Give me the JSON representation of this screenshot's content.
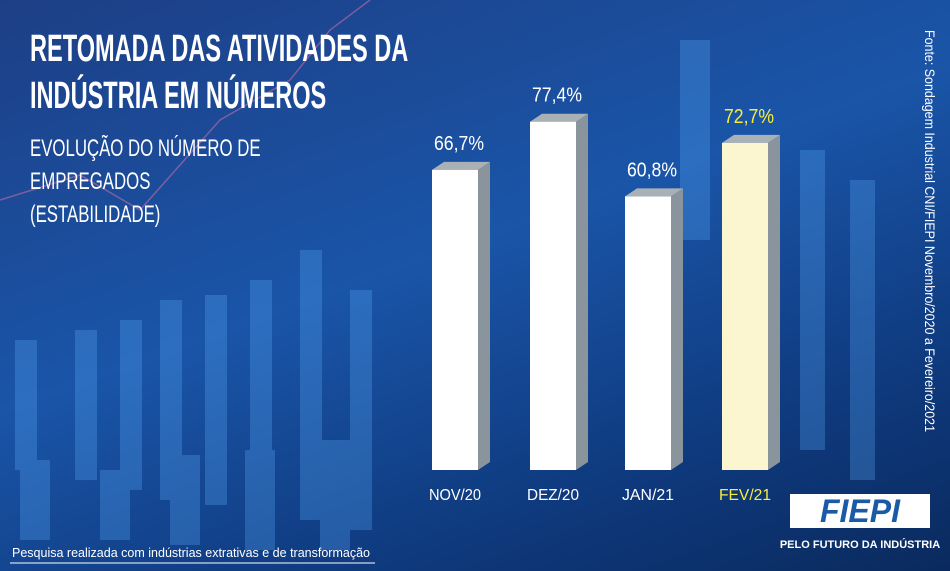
{
  "chart_data": {
    "type": "bar3d",
    "title": "RETOMADA DAS ATIVIDADES DA INDÚSTRIA EM NÚMEROS",
    "subtitle": "EVOLUÇÃO DO NÚMERO DE EMPREGADOS (ESTABILIDADE)",
    "categories": [
      "NOV/20",
      "DEZ/20",
      "JAN/21",
      "FEV/21"
    ],
    "values": [
      66.7,
      77.4,
      60.8,
      72.7
    ],
    "value_labels": [
      "66,7%",
      "77,4%",
      "60,8%",
      "72,7%"
    ],
    "colors": [
      "#ffffff",
      "#ffffff",
      "#ffffff",
      "#fbf6cf"
    ],
    "label_colors": [
      "#ffffff",
      "#ffffff",
      "#ffffff",
      "#f7ee3c"
    ],
    "source": "Fonte: Sondagem Industrial CNI/FIEPI Novembro/2020 a Fevereiro/2021",
    "footnote": "Pesquisa realizada com indústrias extrativas e de transformação",
    "logo": "FIEPI",
    "tagline": "PELO FUTURO DA INDÚSTRIA"
  }
}
